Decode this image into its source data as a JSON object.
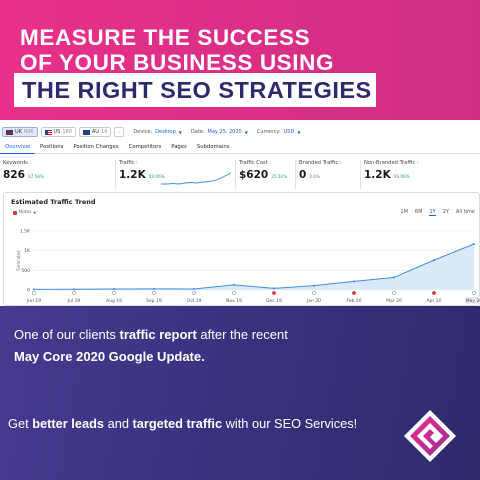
{
  "headline": {
    "line1": "Measure the success",
    "line2": "of your business using",
    "highlight": "The right SEO strategies"
  },
  "toolbar": {
    "databases": [
      {
        "code": "UK",
        "count": "606",
        "active": true
      },
      {
        "code": "US",
        "count": "180",
        "active": false
      },
      {
        "code": "AU",
        "count": "14",
        "active": false
      }
    ],
    "more": "...",
    "device_label": "Device:",
    "device_value": "Desktop",
    "date_label": "Date:",
    "date_value": "May 25, 2020",
    "currency_label": "Currency:",
    "currency_value": "USD"
  },
  "tabs": [
    "Overview",
    "Positions",
    "Position Changes",
    "Competitors",
    "Pages",
    "Subdomains"
  ],
  "metrics": {
    "keywords": {
      "label": "Keywords",
      "value": "826",
      "delta": "37.58%"
    },
    "traffic": {
      "label": "Traffic",
      "value": "1.2K",
      "delta": "59.06%"
    },
    "traffic_cost": {
      "label": "Traffic Cost",
      "value": "$620",
      "delta": "25.51%"
    },
    "branded": {
      "label": "Branded Traffic",
      "value": "0",
      "delta": "0.0%"
    },
    "non_branded": {
      "label": "Non-Branded Traffic",
      "value": "1.2K",
      "delta": "59.06%"
    }
  },
  "trend": {
    "title": "Estimated Traffic Trend",
    "notes_label": "Notes",
    "ranges": [
      "1M",
      "6M",
      "1Y",
      "2Y",
      "All time"
    ],
    "active_range": "1Y"
  },
  "chart_data": {
    "type": "area",
    "x": [
      "Jun 19",
      "Jul 19",
      "Aug 19",
      "Sep 19",
      "Oct 19",
      "Nov 19",
      "Dec 19",
      "Jan 20",
      "Feb 20",
      "Mar 20",
      "Apr 20",
      "May 20"
    ],
    "series": [
      {
        "values": [
          15,
          20,
          25,
          30,
          25,
          130,
          40,
          110,
          220,
          320,
          760,
          1170
        ]
      }
    ],
    "ylabel": "Estimated",
    "yticks": [
      "0",
      "500",
      "1K",
      "1.5K"
    ],
    "ylim": [
      0,
      1500
    ],
    "grid": true,
    "color": "#3d8ee0",
    "fill": "#d6e8f8"
  },
  "caption": {
    "line1_pre": "One of our clients ",
    "line1_bold": "traffic report",
    "line1_post": " after the recent",
    "line2": "May Core 2020 Google Update."
  },
  "cta": {
    "pre": "Get ",
    "bold1": "better leads",
    "mid": " and ",
    "bold2": "targeted traffic",
    "post": " with our SEO Services!"
  },
  "colors": {
    "pink": "#e8308a",
    "navy": "#2d2a6e",
    "purple": "#3a327f",
    "link_blue": "#1d63d1"
  },
  "icons": {
    "logo": "g-logo-icon",
    "notes": "notes-flag-icon",
    "info": "info-icon"
  }
}
